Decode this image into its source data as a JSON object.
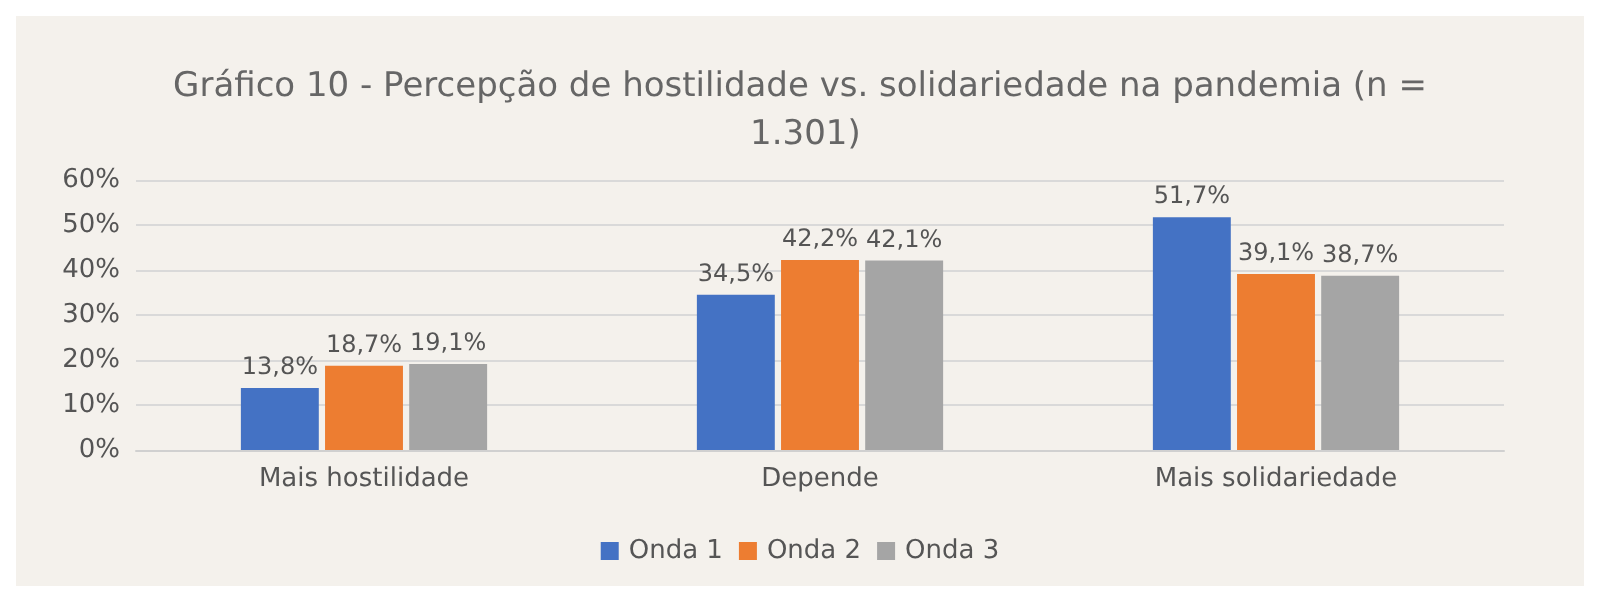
{
  "chart_data": {
    "type": "bar",
    "title": "Gráfico 10 - Percepção de hostilidade vs. solidariedade na pandemia (n = 1.301)",
    "categories": [
      "Mais hostilidade",
      "Depende",
      "Mais solidariedade"
    ],
    "series": [
      {
        "name": "Onda 1",
        "color": "#4472c4",
        "values": [
          13.8,
          34.5,
          51.7
        ],
        "value_labels": [
          "13,8%",
          "34,5%",
          "51,7%"
        ]
      },
      {
        "name": "Onda 2",
        "color": "#ed7d31",
        "values": [
          18.7,
          42.2,
          39.1
        ],
        "value_labels": [
          "18,7%",
          "42,2%",
          "39,1%"
        ]
      },
      {
        "name": "Onda 3",
        "color": "#a5a5a5",
        "values": [
          19.1,
          42.1,
          38.7
        ],
        "value_labels": [
          "19,1%",
          "42,1%",
          "38,7%"
        ]
      }
    ],
    "ylim": [
      0,
      60
    ],
    "yticks": [
      {
        "value": 0,
        "label": "0%"
      },
      {
        "value": 10,
        "label": "10%"
      },
      {
        "value": 20,
        "label": "20%"
      },
      {
        "value": 30,
        "label": "30%"
      },
      {
        "value": 40,
        "label": "40%"
      },
      {
        "value": 50,
        "label": "50%"
      },
      {
        "value": 60,
        "label": "60%"
      }
    ],
    "grid": "y",
    "legend": "bottom"
  }
}
